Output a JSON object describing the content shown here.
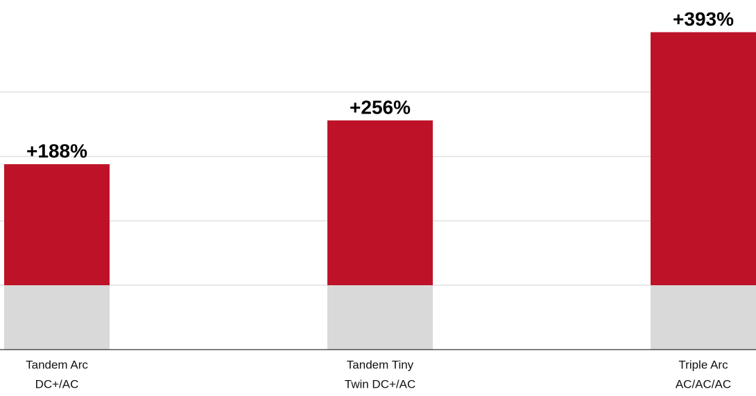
{
  "chart_data": {
    "type": "stacked_bar",
    "categories": [
      [
        "Tandem Arc",
        "DC+/AC"
      ],
      [
        "Tandem Tiny",
        "Twin DC+/AC"
      ],
      [
        "Triple Arc",
        "AC/AC/AC"
      ]
    ],
    "series": [
      {
        "color": "#d9d9d9",
        "values": [
          100,
          100,
          100
        ]
      },
      {
        "color": "#be1229",
        "values": [
          188,
          256,
          393
        ],
        "value_labels": [
          "+188%",
          "+256%",
          "+393%"
        ]
      }
    ],
    "ylim": [
      0,
      543
    ],
    "yticks": [
      0,
      100,
      200,
      300,
      400
    ],
    "grid": true
  }
}
